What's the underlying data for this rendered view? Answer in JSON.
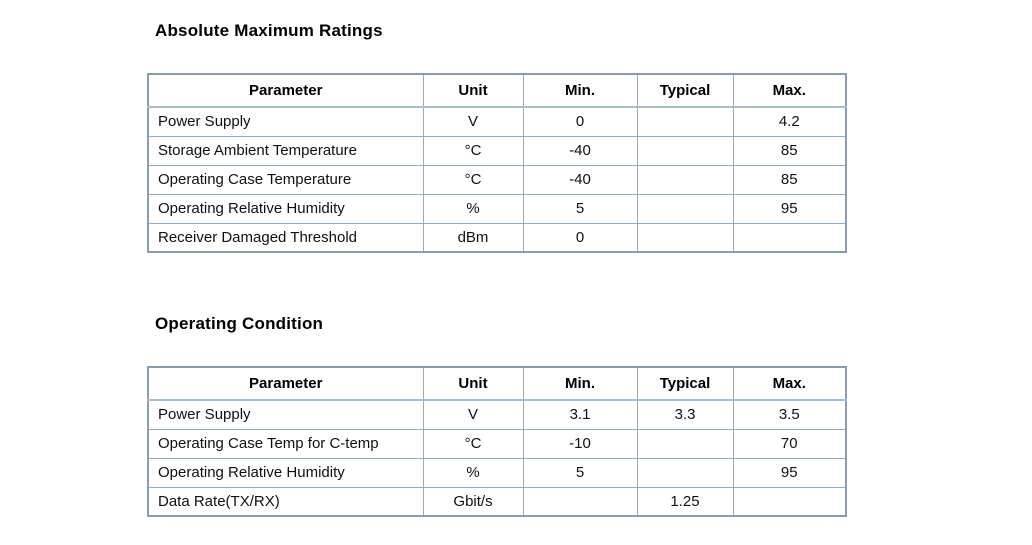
{
  "page": {
    "background": "#ffffff",
    "text_color": "#111111",
    "table_border_color": "#9aaab9",
    "table_outer_border_color": "#8a9cb0"
  },
  "sections": [
    {
      "title": "Absolute Maximum Ratings",
      "columns": [
        "Parameter",
        "Unit",
        "Min.",
        "Typical",
        "Max."
      ],
      "rows": [
        [
          "Power Supply",
          "V",
          "0",
          "",
          "4.2"
        ],
        [
          "Storage Ambient Temperature",
          "°C",
          "-40",
          "",
          "85"
        ],
        [
          "Operating Case Temperature",
          "°C",
          "-40",
          "",
          "85"
        ],
        [
          "Operating Relative Humidity",
          "%",
          "5",
          "",
          "95"
        ],
        [
          "Receiver Damaged Threshold",
          "dBm",
          "0",
          "",
          ""
        ]
      ]
    },
    {
      "title": "Operating Condition",
      "columns": [
        "Parameter",
        "Unit",
        "Min.",
        "Typical",
        "Max."
      ],
      "rows": [
        [
          "Power Supply",
          "V",
          "3.1",
          "3.3",
          "3.5"
        ],
        [
          "Operating Case Temp for C-temp",
          "°C",
          "-10",
          "",
          "70"
        ],
        [
          "Operating Relative Humidity",
          "%",
          "5",
          "",
          "95"
        ],
        [
          "Data Rate(TX/RX)",
          "Gbit/s",
          "",
          "1.25",
          ""
        ]
      ]
    }
  ]
}
